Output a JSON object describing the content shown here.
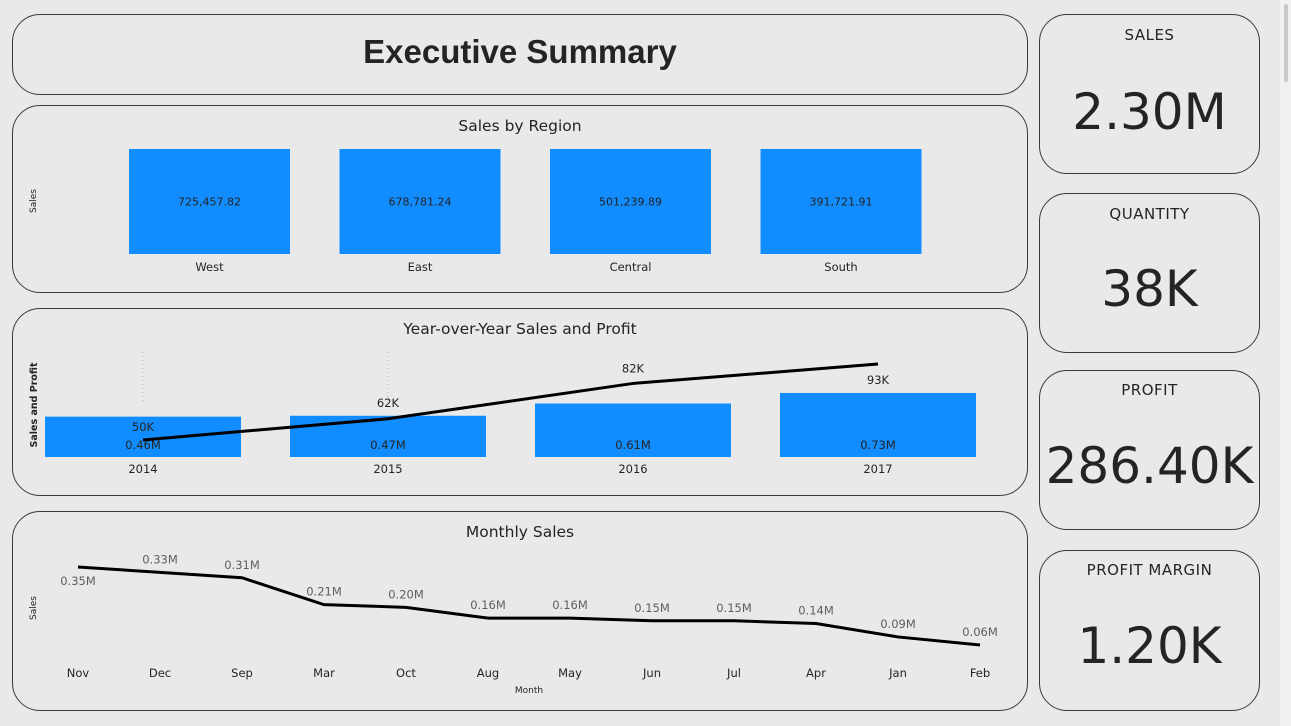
{
  "header": {
    "title": "Executive Summary"
  },
  "kpis": [
    {
      "label": "SALES",
      "value": "2.30M"
    },
    {
      "label": "QUANTITY",
      "value": "38K"
    },
    {
      "label": "PROFIT",
      "value": "286.40K"
    },
    {
      "label": "PROFIT MARGIN",
      "value": "1.20K"
    }
  ],
  "colors": {
    "bar": "#118dff",
    "line": "#000000",
    "background": "#e9e9e9",
    "border": "#3b3b3b"
  },
  "chart_data": [
    {
      "type": "bar",
      "title": "Sales by Region",
      "ylabel": "Sales",
      "xlabel": "",
      "categories": [
        "West",
        "East",
        "Central",
        "South"
      ],
      "values": [
        725457.82,
        678781.24,
        501239.89,
        391721.91
      ],
      "data_labels": [
        "725,457.82",
        "678,781.24",
        "501,239.89",
        "391,721.91"
      ],
      "grid": false,
      "legend": "none"
    },
    {
      "type": "bar",
      "title": "Year-over-Year Sales and Profit",
      "ylabel": "Sales and Profit",
      "xlabel": "",
      "categories": [
        "2014",
        "2015",
        "2016",
        "2017"
      ],
      "series": [
        {
          "type": "bar",
          "values": [
            0.46,
            0.47,
            0.61,
            0.73
          ],
          "labels": [
            "0.46M",
            "0.47M",
            "0.61M",
            "0.73M"
          ]
        },
        {
          "type": "line",
          "values": [
            50,
            62,
            82,
            93
          ],
          "labels": [
            "50K",
            "62K",
            "82K",
            "93K"
          ]
        }
      ],
      "grid": false,
      "legend": "none"
    },
    {
      "type": "line",
      "title": "Monthly Sales",
      "ylabel": "Sales",
      "xlabel": "Month",
      "categories": [
        "Nov",
        "Dec",
        "Sep",
        "Mar",
        "Oct",
        "Aug",
        "May",
        "Jun",
        "Jul",
        "Apr",
        "Jan",
        "Feb"
      ],
      "values": [
        0.35,
        0.33,
        0.31,
        0.21,
        0.2,
        0.16,
        0.16,
        0.15,
        0.15,
        0.14,
        0.09,
        0.06
      ],
      "data_labels": [
        "0.35M",
        "0.33M",
        "0.31M",
        "0.21M",
        "0.20M",
        "0.16M",
        "0.16M",
        "0.15M",
        "0.15M",
        "0.14M",
        "0.09M",
        "0.06M"
      ],
      "grid": false,
      "legend": "none"
    }
  ]
}
